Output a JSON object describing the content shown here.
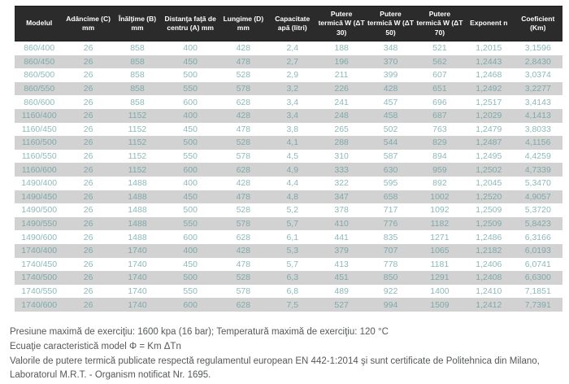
{
  "table": {
    "columns": [
      "Modelul",
      "Adâncime (C) mm",
      "Înălţime (B) mm",
      "Distanţa faţă de centru (A) mm",
      "Lungime (D) mm",
      "Capacitate apă (litri)",
      "Putere termică W (ΔT 30)",
      "Putere termică W (ΔT 50)",
      "Putere termică W (ΔT 70)",
      "Exponent n",
      "Coeficient (Km)"
    ],
    "rows": [
      [
        "860/400",
        "26",
        "858",
        "400",
        "428",
        "2,4",
        "188",
        "348",
        "521",
        "1,2015",
        "3,1596"
      ],
      [
        "860/450",
        "26",
        "858",
        "450",
        "478",
        "2,7",
        "196",
        "370",
        "562",
        "1,2443",
        "2,8430"
      ],
      [
        "860/500",
        "26",
        "858",
        "500",
        "528",
        "2,9",
        "211",
        "399",
        "607",
        "1,2468",
        "3,0374"
      ],
      [
        "860/550",
        "26",
        "858",
        "550",
        "578",
        "3,2",
        "226",
        "428",
        "651",
        "1,2492",
        "3,2277"
      ],
      [
        "860/600",
        "26",
        "858",
        "600",
        "628",
        "3,4",
        "241",
        "457",
        "696",
        "1,2517",
        "3,4143"
      ],
      [
        "1160/400",
        "26",
        "1152",
        "400",
        "428",
        "3,4",
        "248",
        "458",
        "687",
        "1,2029",
        "4,1413"
      ],
      [
        "1160/450",
        "26",
        "1152",
        "450",
        "478",
        "3,8",
        "265",
        "502",
        "763",
        "1,2479",
        "3,8033"
      ],
      [
        "1160/500",
        "26",
        "1152",
        "500",
        "528",
        "4,1",
        "288",
        "544",
        "829",
        "1,2487",
        "4,1156"
      ],
      [
        "1160/550",
        "26",
        "1152",
        "550",
        "578",
        "4,5",
        "310",
        "587",
        "894",
        "1,2495",
        "4,4259"
      ],
      [
        "1160/600",
        "26",
        "1152",
        "600",
        "628",
        "4,9",
        "333",
        "630",
        "959",
        "1,2502",
        "4,7339"
      ],
      [
        "1490/400",
        "26",
        "1488",
        "400",
        "428",
        "4,4",
        "322",
        "595",
        "892",
        "1,2045",
        "5,3470"
      ],
      [
        "1490/450",
        "26",
        "1488",
        "450",
        "478",
        "4,8",
        "347",
        "658",
        "1002",
        "1,2520",
        "4,9057"
      ],
      [
        "1490/500",
        "26",
        "1488",
        "500",
        "528",
        "5,2",
        "378",
        "717",
        "1092",
        "1,2509",
        "5,3720"
      ],
      [
        "1490/550",
        "26",
        "1488",
        "550",
        "578",
        "5,7",
        "410",
        "776",
        "1182",
        "1,2509",
        "5,8423"
      ],
      [
        "1490/600",
        "26",
        "1488",
        "600",
        "628",
        "6,1",
        "441",
        "835",
        "1271",
        "1,2486",
        "6,3166"
      ],
      [
        "1740/400",
        "26",
        "1740",
        "400",
        "428",
        "5,3",
        "379",
        "707",
        "1065",
        "1,2182",
        "6,0193"
      ],
      [
        "1740/450",
        "26",
        "1740",
        "450",
        "478",
        "5,7",
        "413",
        "778",
        "1181",
        "1,2406",
        "6,0741"
      ],
      [
        "1740/500",
        "26",
        "1740",
        "500",
        "528",
        "6,3",
        "451",
        "850",
        "1291",
        "1,2408",
        "6,6300"
      ],
      [
        "1740/550",
        "26",
        "1740",
        "550",
        "578",
        "6,8",
        "489",
        "922",
        "1400",
        "1,2410",
        "7,1851"
      ],
      [
        "1740/600",
        "26",
        "1740",
        "600",
        "628",
        "7,5",
        "527",
        "994",
        "1509",
        "1,2412",
        "7,7391"
      ]
    ]
  },
  "footer": {
    "line1": "Presiune maximă de exerciţiu: 1600 kpa (16 bar); Temperatură maximă de exerciţiu: 120 °C",
    "line2": "Ecuaţie caracteristică model Φ = Km ΔTn",
    "line3": "Valorile de putere termică publicate respectă regulamentul european EN 442-1:2014 şi sunt certificate de Politehnica din Milano, Laboratorul M.R.T. - Organism notificat Nr. 1695."
  },
  "colors": {
    "header_bg": "#2b2b2b",
    "header_text": "#ffffff",
    "row_alt_bg": "#d2d2d2",
    "cell_text": "#8db8ba",
    "footer_text": "#55585a"
  }
}
